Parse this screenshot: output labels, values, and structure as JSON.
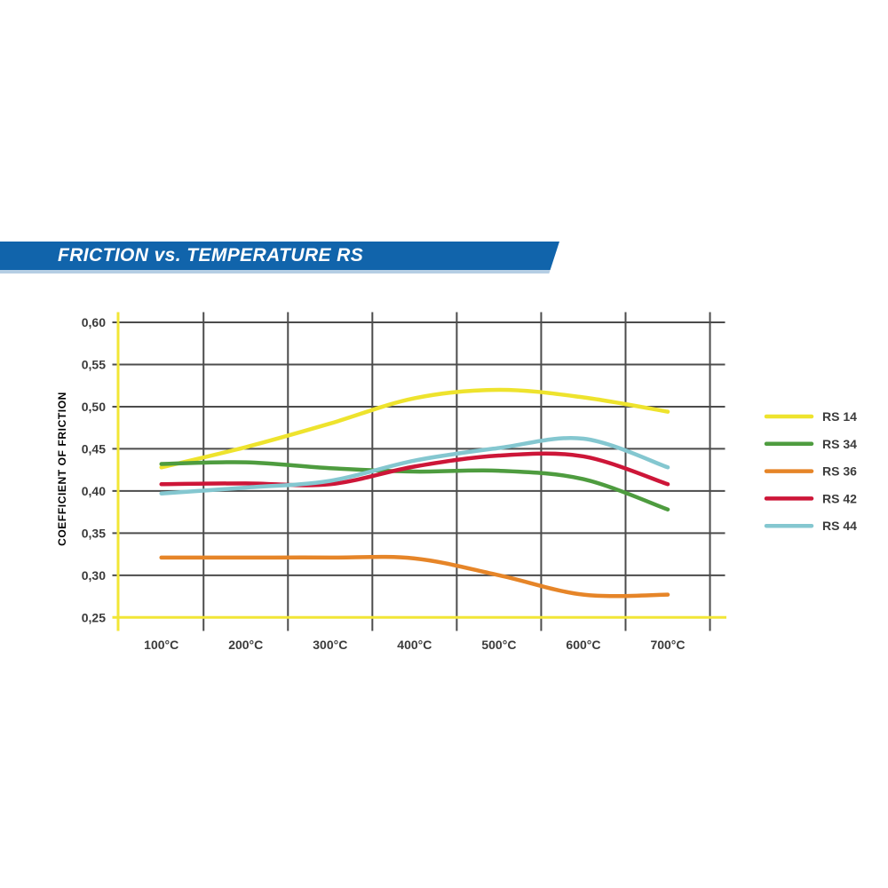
{
  "banner": {
    "title": "FRICTION vs. TEMPERATURE RS",
    "bg_color": "#1164ab",
    "underline_color": "#5b93c4",
    "text_color": "#ffffff"
  },
  "chart_data": {
    "type": "line",
    "title": "FRICTION vs. TEMPERATURE RS",
    "xlabel": "",
    "ylabel": "COEFFICIENT OF FRICTION",
    "categories": [
      "100°C",
      "200°C",
      "300°C",
      "400°C",
      "500°C",
      "600°C",
      "700°C"
    ],
    "x_values": [
      100,
      200,
      300,
      400,
      500,
      600,
      700
    ],
    "ylim": [
      0.25,
      0.6
    ],
    "ytick_step": 0.05,
    "ytick_labels": [
      "0,60",
      "0,55",
      "0,50",
      "0,45",
      "0,40",
      "0,35",
      "0,30",
      "0,25"
    ],
    "grid": true,
    "legend_position": "right",
    "colors": {
      "axis_yellow": "#f2e636",
      "grid_gray": "#4c4c4c",
      "text_gray": "#3b3b3b"
    },
    "series": [
      {
        "name": "RS 14",
        "color": "#eee32d",
        "values": [
          0.428,
          0.452,
          0.48,
          0.51,
          0.52,
          0.511,
          0.494
        ]
      },
      {
        "name": "RS 34",
        "color": "#4e9c3f",
        "values": [
          0.432,
          0.434,
          0.427,
          0.423,
          0.424,
          0.414,
          0.378
        ]
      },
      {
        "name": "RS 36",
        "color": "#e68528",
        "values": [
          0.321,
          0.321,
          0.321,
          0.32,
          0.3,
          0.277,
          0.277
        ]
      },
      {
        "name": "RS 42",
        "color": "#cd1638",
        "values": [
          0.408,
          0.409,
          0.408,
          0.429,
          0.442,
          0.441,
          0.408
        ]
      },
      {
        "name": "RS 44",
        "color": "#84c7d0",
        "values": [
          0.397,
          0.404,
          0.412,
          0.436,
          0.451,
          0.462,
          0.428
        ]
      }
    ]
  }
}
